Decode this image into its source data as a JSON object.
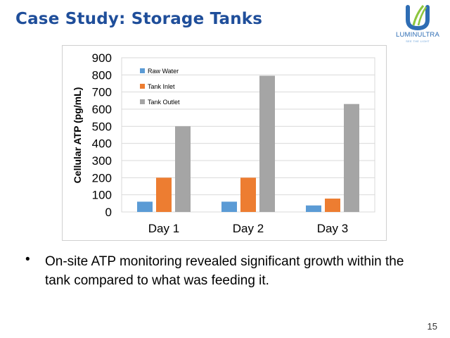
{
  "slide": {
    "title": "Case Study: Storage Tanks",
    "bullet_text": "On-site ATP monitoring revealed significant growth within the tank compared to what was feeding it.",
    "page_number": "15"
  },
  "logo": {
    "name": "LUMINULTRA",
    "tagline": "SEE THE LIGHT"
  },
  "colors": {
    "title": "#1f4e9a",
    "raw_water": "#5b9bd5",
    "tank_inlet": "#ed7d31",
    "tank_outlet": "#a5a5a5",
    "logo_blue": "#2e6db4",
    "logo_green": "#8dc63f"
  },
  "chart_data": {
    "type": "bar",
    "title": "",
    "xlabel": "",
    "ylabel": "Cellular ATP (pg/mL)",
    "categories": [
      "Day 1",
      "Day 2",
      "Day 3"
    ],
    "ylim": [
      0,
      900
    ],
    "yticks": [
      0,
      100,
      200,
      300,
      400,
      500,
      600,
      700,
      800,
      900
    ],
    "grid": true,
    "legend_position": "top-left",
    "series": [
      {
        "name": "Raw Water",
        "values": [
          60,
          60,
          38
        ],
        "color": "#5b9bd5"
      },
      {
        "name": "Tank Inlet",
        "values": [
          200,
          200,
          78
        ],
        "color": "#ed7d31"
      },
      {
        "name": "Tank Outlet",
        "values": [
          500,
          795,
          630
        ],
        "color": "#a5a5a5"
      }
    ]
  }
}
